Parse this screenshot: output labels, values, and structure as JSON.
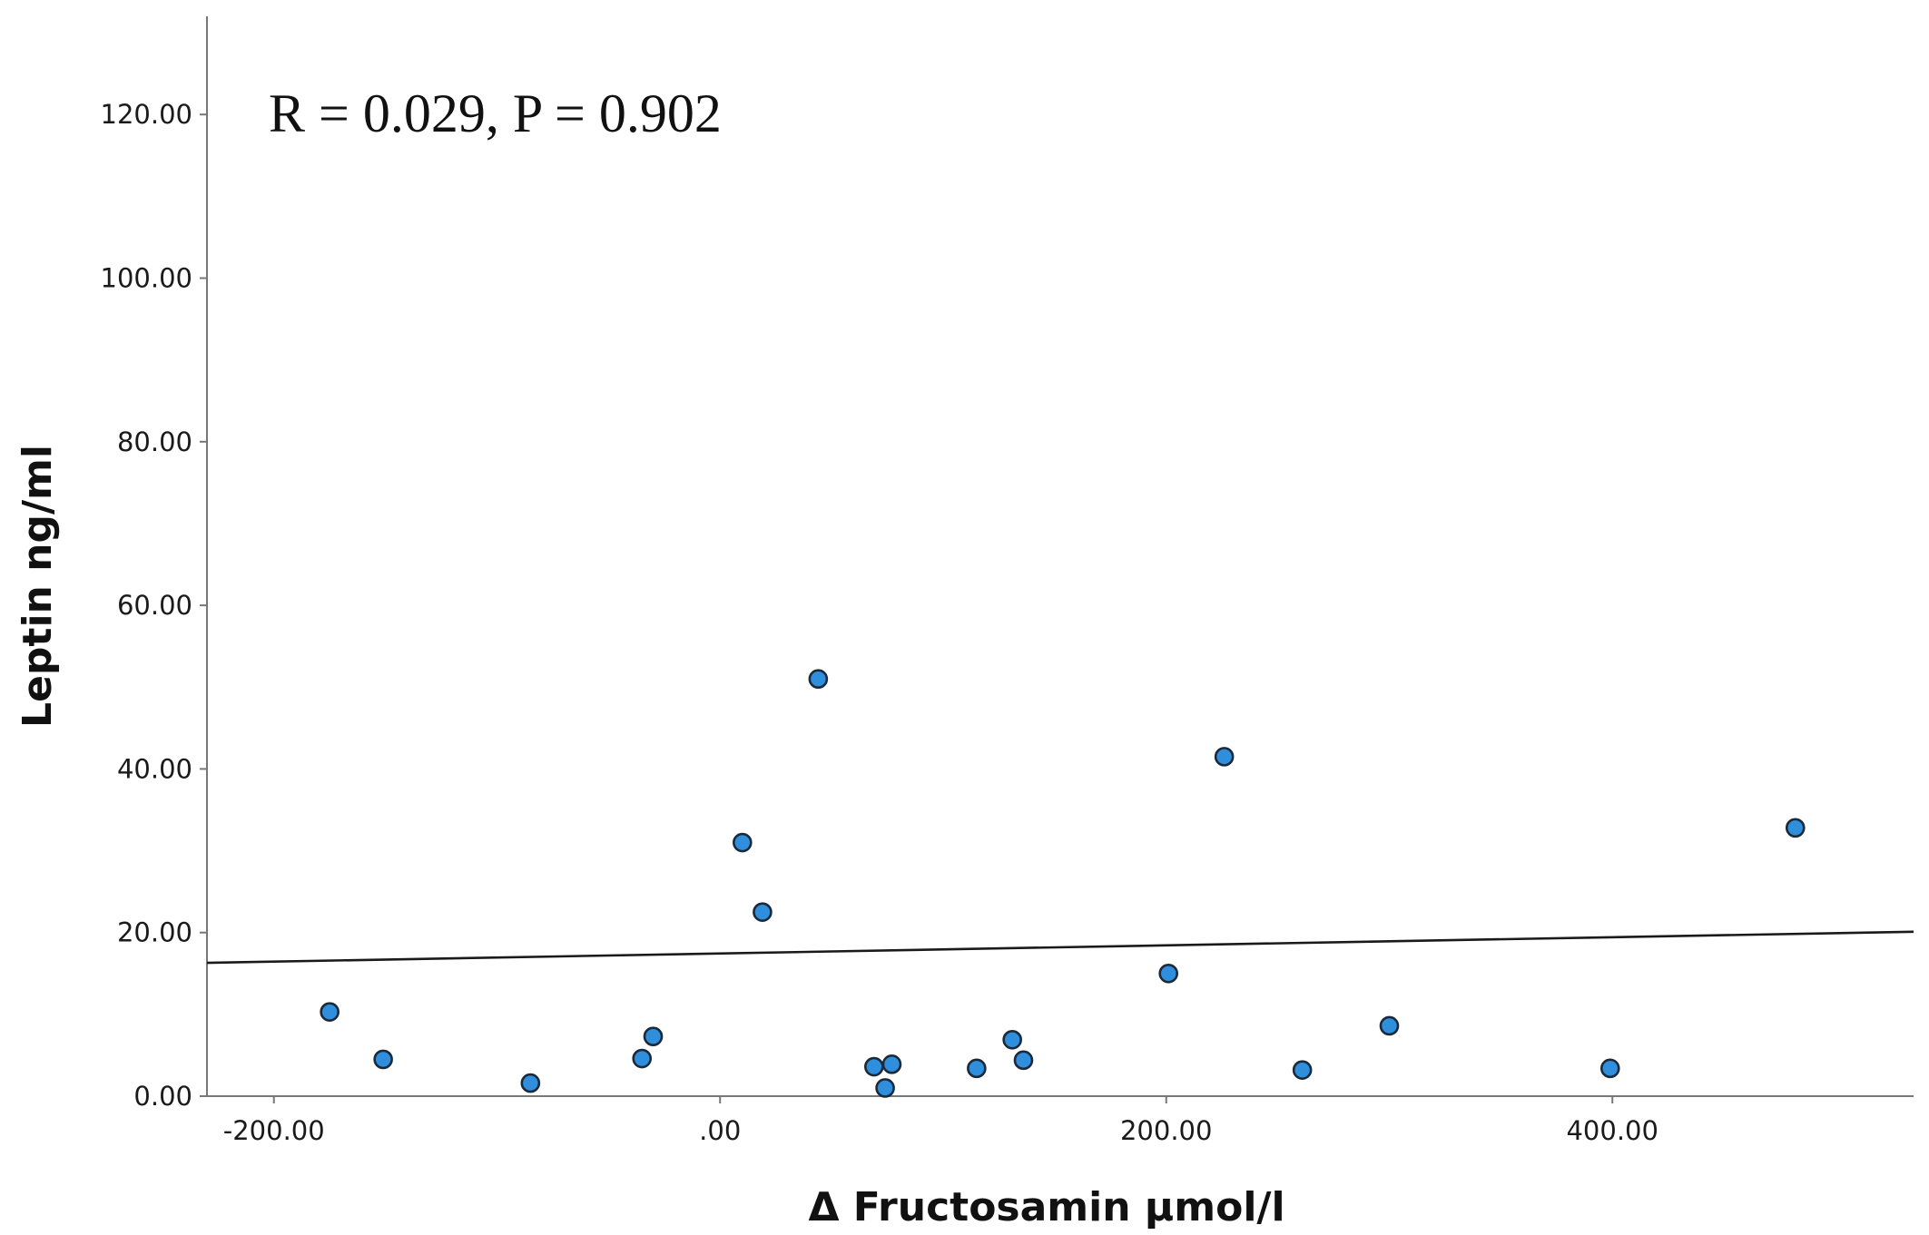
{
  "chart_data": {
    "type": "scatter",
    "title": "",
    "annotation": "R = 0.029, P = 0.902",
    "xlabel": "Δ Fructosamin µmol/l",
    "ylabel": "Leptin ng/ml",
    "xlim": [
      -230,
      535
    ],
    "ylim": [
      0,
      132
    ],
    "xticks": [
      -200,
      0,
      200,
      400
    ],
    "xtick_labels": [
      "-200.00",
      ".00",
      "200.00",
      "400.00"
    ],
    "yticks": [
      0,
      20,
      40,
      60,
      80,
      100,
      120
    ],
    "ytick_labels": [
      "0.00",
      "20.00",
      "40.00",
      "60.00",
      "80.00",
      "100.00",
      "120.00"
    ],
    "grid": false,
    "marker_color": "#2f8fdd",
    "marker_edge_color": "#1a2a3a",
    "line_color": "#1a1a1a",
    "points": [
      {
        "x": -175,
        "y": 10.3
      },
      {
        "x": -151,
        "y": 4.5
      },
      {
        "x": -85,
        "y": 1.6
      },
      {
        "x": -35,
        "y": 4.6
      },
      {
        "x": -30,
        "y": 7.3
      },
      {
        "x": 10,
        "y": 31.0
      },
      {
        "x": 19,
        "y": 22.5
      },
      {
        "x": 44,
        "y": 51.0
      },
      {
        "x": 69,
        "y": 3.6
      },
      {
        "x": 74,
        "y": 1.0
      },
      {
        "x": 77,
        "y": 3.9
      },
      {
        "x": 115,
        "y": 3.4
      },
      {
        "x": 131,
        "y": 6.9
      },
      {
        "x": 136,
        "y": 4.4
      },
      {
        "x": 201,
        "y": 15.0
      },
      {
        "x": 226,
        "y": 41.5
      },
      {
        "x": 261,
        "y": 3.2
      },
      {
        "x": 300,
        "y": 8.6
      },
      {
        "x": 399,
        "y": 3.4
      },
      {
        "x": 482,
        "y": 32.8
      }
    ],
    "fit_line": {
      "x": [
        -230,
        535
      ],
      "y": [
        16.3,
        20.1
      ]
    }
  }
}
